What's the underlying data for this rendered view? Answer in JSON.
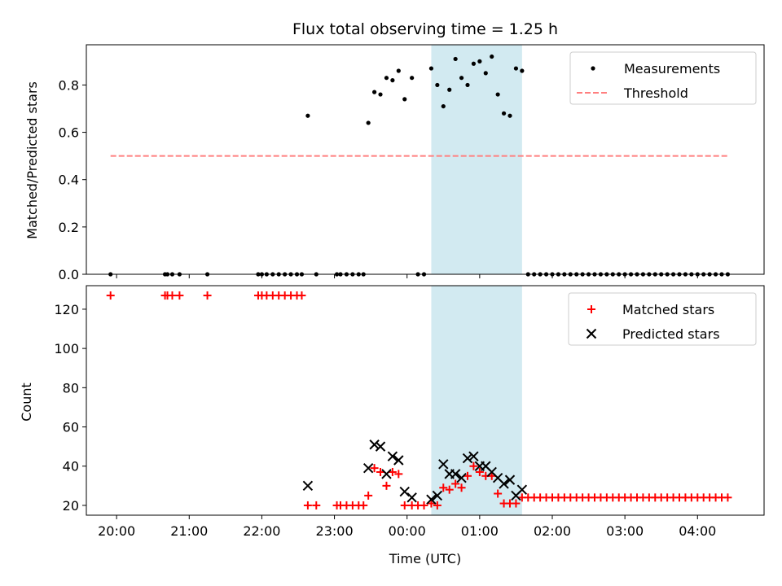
{
  "chart_data": [
    {
      "type": "scatter",
      "title": "Flux total observing time = 1.25 h",
      "xlabel": "",
      "ylabel": "Matched/Predicted stars",
      "xlim": [
        "19:35",
        "04:55"
      ],
      "ylim": [
        0,
        0.97
      ],
      "yticks": [
        "0.0",
        "0.2",
        "0.4",
        "0.6",
        "0.8"
      ],
      "grid": false,
      "legend": "top-right",
      "shaded_interval": [
        "00:20",
        "01:35"
      ],
      "shade_color": "#add8e6",
      "threshold": {
        "name": "Threshold",
        "value": 0.5,
        "x": [
          "19:55",
          "04:25"
        ],
        "color": "#ff7f7f",
        "style": "dashed"
      },
      "series": [
        {
          "name": "Measurements",
          "color": "#000000",
          "marker": "dot",
          "points": [
            [
              "19:55",
              0.0
            ],
            [
              "20:40",
              0.0
            ],
            [
              "20:42",
              0.0
            ],
            [
              "20:46",
              0.0
            ],
            [
              "20:52",
              0.0
            ],
            [
              "21:15",
              0.0
            ],
            [
              "21:57",
              0.0
            ],
            [
              "22:00",
              0.0
            ],
            [
              "22:04",
              0.0
            ],
            [
              "22:09",
              0.0
            ],
            [
              "22:14",
              0.0
            ],
            [
              "22:19",
              0.0
            ],
            [
              "22:24",
              0.0
            ],
            [
              "22:29",
              0.0
            ],
            [
              "22:33",
              0.0
            ],
            [
              "22:38",
              0.67
            ],
            [
              "22:45",
              0.0
            ],
            [
              "23:02",
              0.0
            ],
            [
              "23:05",
              0.0
            ],
            [
              "23:10",
              0.0
            ],
            [
              "23:15",
              0.0
            ],
            [
              "23:20",
              0.0
            ],
            [
              "23:24",
              0.0
            ],
            [
              "23:28",
              0.64
            ],
            [
              "23:33",
              0.77
            ],
            [
              "23:38",
              0.76
            ],
            [
              "23:43",
              0.83
            ],
            [
              "23:48",
              0.82
            ],
            [
              "23:53",
              0.86
            ],
            [
              "23:58",
              0.74
            ],
            [
              "00:04",
              0.83
            ],
            [
              "00:09",
              0.0
            ],
            [
              "00:14",
              0.0
            ],
            [
              "00:20",
              0.87
            ],
            [
              "00:25",
              0.8
            ],
            [
              "00:30",
              0.71
            ],
            [
              "00:35",
              0.78
            ],
            [
              "00:40",
              0.91
            ],
            [
              "00:45",
              0.83
            ],
            [
              "00:50",
              0.8
            ],
            [
              "00:55",
              0.89
            ],
            [
              "01:00",
              0.9
            ],
            [
              "01:05",
              0.85
            ],
            [
              "01:10",
              0.92
            ],
            [
              "01:15",
              0.76
            ],
            [
              "01:20",
              0.68
            ],
            [
              "01:25",
              0.67
            ],
            [
              "01:30",
              0.87
            ],
            [
              "01:35",
              0.86
            ],
            [
              "01:40",
              0.0
            ],
            [
              "01:45",
              0.0
            ],
            [
              "01:50",
              0.0
            ],
            [
              "01:55",
              0.0
            ],
            [
              "02:00",
              0.0
            ],
            [
              "02:05",
              0.0
            ],
            [
              "02:10",
              0.0
            ],
            [
              "02:15",
              0.0
            ],
            [
              "02:20",
              0.0
            ],
            [
              "02:25",
              0.0
            ],
            [
              "02:30",
              0.0
            ],
            [
              "02:35",
              0.0
            ],
            [
              "02:40",
              0.0
            ],
            [
              "02:45",
              0.0
            ],
            [
              "02:50",
              0.0
            ],
            [
              "02:55",
              0.0
            ],
            [
              "03:00",
              0.0
            ],
            [
              "03:05",
              0.0
            ],
            [
              "03:10",
              0.0
            ],
            [
              "03:15",
              0.0
            ],
            [
              "03:20",
              0.0
            ],
            [
              "03:25",
              0.0
            ],
            [
              "03:30",
              0.0
            ],
            [
              "03:35",
              0.0
            ],
            [
              "03:40",
              0.0
            ],
            [
              "03:45",
              0.0
            ],
            [
              "03:50",
              0.0
            ],
            [
              "03:55",
              0.0
            ],
            [
              "04:00",
              0.0
            ],
            [
              "04:05",
              0.0
            ],
            [
              "04:10",
              0.0
            ],
            [
              "04:15",
              0.0
            ],
            [
              "04:20",
              0.0
            ],
            [
              "04:25",
              0.0
            ]
          ]
        }
      ],
      "legend_entries": [
        "Measurements",
        "Threshold"
      ]
    },
    {
      "type": "scatter",
      "title": "",
      "xlabel": "Time (UTC)",
      "ylabel": "Count",
      "xlim": [
        "19:35",
        "04:55"
      ],
      "ylim": [
        15,
        132
      ],
      "yticks": [
        "20",
        "40",
        "60",
        "80",
        "100",
        "120"
      ],
      "xticks": [
        "20:00",
        "21:00",
        "22:00",
        "23:00",
        "00:00",
        "01:00",
        "02:00",
        "03:00",
        "04:00"
      ],
      "grid": false,
      "legend": "top-right",
      "shaded_interval": [
        "00:20",
        "01:35"
      ],
      "shade_color": "#add8e6",
      "series": [
        {
          "name": "Matched stars",
          "color": "#ff0000",
          "marker": "plus",
          "points": [
            [
              "19:55",
              127
            ],
            [
              "20:40",
              127
            ],
            [
              "20:42",
              127
            ],
            [
              "20:46",
              127
            ],
            [
              "20:52",
              127
            ],
            [
              "21:15",
              127
            ],
            [
              "21:57",
              127
            ],
            [
              "22:00",
              127
            ],
            [
              "22:04",
              127
            ],
            [
              "22:09",
              127
            ],
            [
              "22:14",
              127
            ],
            [
              "22:19",
              127
            ],
            [
              "22:24",
              127
            ],
            [
              "22:29",
              127
            ],
            [
              "22:33",
              127
            ],
            [
              "22:38",
              20
            ],
            [
              "22:45",
              20
            ],
            [
              "23:02",
              20
            ],
            [
              "23:05",
              20
            ],
            [
              "23:10",
              20
            ],
            [
              "23:15",
              20
            ],
            [
              "23:20",
              20
            ],
            [
              "23:24",
              20
            ],
            [
              "23:28",
              25
            ],
            [
              "23:33",
              39
            ],
            [
              "23:38",
              37
            ],
            [
              "23:43",
              30
            ],
            [
              "23:48",
              37
            ],
            [
              "23:53",
              36
            ],
            [
              "23:58",
              20
            ],
            [
              "00:04",
              20
            ],
            [
              "00:09",
              20
            ],
            [
              "00:14",
              20
            ],
            [
              "00:20",
              21
            ],
            [
              "00:25",
              20
            ],
            [
              "00:30",
              29
            ],
            [
              "00:35",
              28
            ],
            [
              "00:40",
              31
            ],
            [
              "00:45",
              29
            ],
            [
              "00:50",
              35
            ],
            [
              "00:55",
              40
            ],
            [
              "01:00",
              37
            ],
            [
              "01:05",
              35
            ],
            [
              "01:10",
              35
            ],
            [
              "01:15",
              26
            ],
            [
              "01:20",
              21
            ],
            [
              "01:25",
              21
            ],
            [
              "01:30",
              21
            ],
            [
              "01:35",
              24
            ],
            [
              "01:40",
              24
            ],
            [
              "01:45",
              24
            ],
            [
              "01:50",
              24
            ],
            [
              "01:55",
              24
            ],
            [
              "02:00",
              24
            ],
            [
              "02:05",
              24
            ],
            [
              "02:10",
              24
            ],
            [
              "02:15",
              24
            ],
            [
              "02:20",
              24
            ],
            [
              "02:25",
              24
            ],
            [
              "02:30",
              24
            ],
            [
              "02:35",
              24
            ],
            [
              "02:40",
              24
            ],
            [
              "02:45",
              24
            ],
            [
              "02:50",
              24
            ],
            [
              "02:55",
              24
            ],
            [
              "03:00",
              24
            ],
            [
              "03:05",
              24
            ],
            [
              "03:10",
              24
            ],
            [
              "03:15",
              24
            ],
            [
              "03:20",
              24
            ],
            [
              "03:25",
              24
            ],
            [
              "03:30",
              24
            ],
            [
              "03:35",
              24
            ],
            [
              "03:40",
              24
            ],
            [
              "03:45",
              24
            ],
            [
              "03:50",
              24
            ],
            [
              "03:55",
              24
            ],
            [
              "04:00",
              24
            ],
            [
              "04:05",
              24
            ],
            [
              "04:10",
              24
            ],
            [
              "04:15",
              24
            ],
            [
              "04:20",
              24
            ],
            [
              "04:25",
              24
            ]
          ]
        },
        {
          "name": "Predicted stars",
          "color": "#000000",
          "marker": "x",
          "points": [
            [
              "22:38",
              30
            ],
            [
              "23:28",
              39
            ],
            [
              "23:33",
              51
            ],
            [
              "23:38",
              50
            ],
            [
              "23:43",
              36
            ],
            [
              "23:48",
              45
            ],
            [
              "23:53",
              43
            ],
            [
              "23:58",
              27
            ],
            [
              "00:04",
              24
            ],
            [
              "00:20",
              23
            ],
            [
              "00:25",
              25
            ],
            [
              "00:30",
              41
            ],
            [
              "00:35",
              36
            ],
            [
              "00:40",
              36
            ],
            [
              "00:45",
              34
            ],
            [
              "00:50",
              44
            ],
            [
              "00:55",
              45
            ],
            [
              "01:00",
              40
            ],
            [
              "01:05",
              40
            ],
            [
              "01:10",
              37
            ],
            [
              "01:15",
              34
            ],
            [
              "01:20",
              31
            ],
            [
              "01:25",
              33
            ],
            [
              "01:30",
              25
            ],
            [
              "01:35",
              28
            ]
          ]
        }
      ],
      "legend_entries": [
        "Matched stars",
        "Predicted stars"
      ]
    }
  ]
}
